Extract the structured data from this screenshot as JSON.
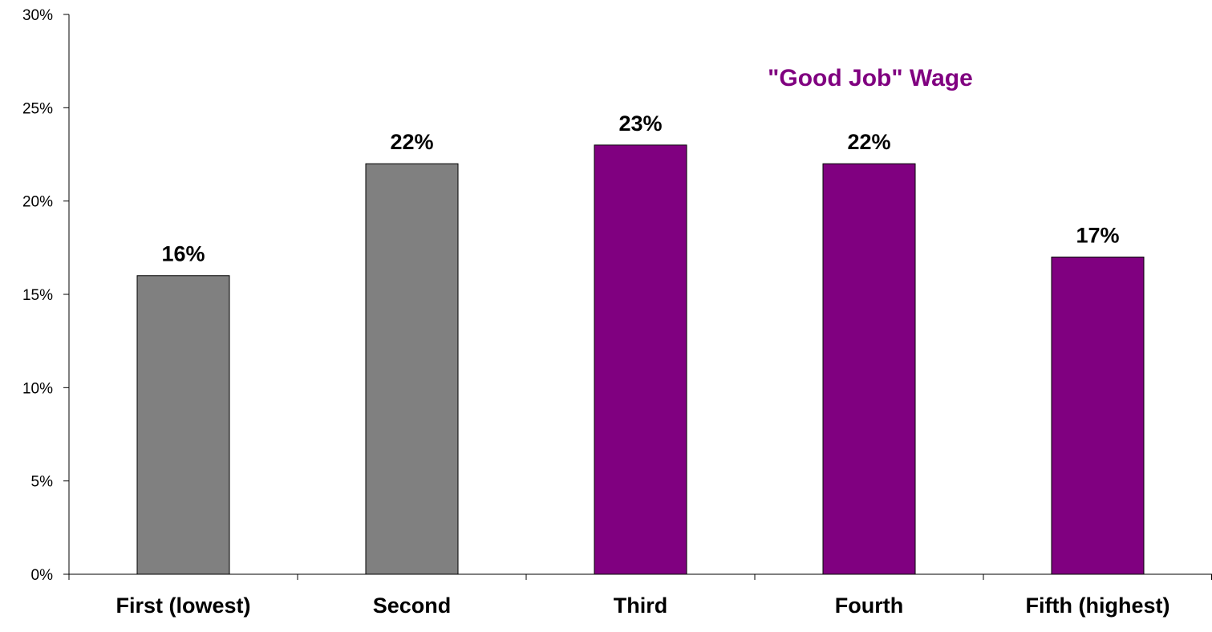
{
  "chart_data": {
    "type": "bar",
    "categories": [
      "First (lowest)",
      "Second",
      "Third",
      "Fourth",
      "Fifth (highest)"
    ],
    "values": [
      16,
      22,
      23,
      22,
      17
    ],
    "value_labels": [
      "16%",
      "22%",
      "23%",
      "22%",
      "17%"
    ],
    "bar_colors": [
      "#808080",
      "#808080",
      "#800080",
      "#800080",
      "#800080"
    ],
    "ylim": [
      0,
      30
    ],
    "yticks": [
      0,
      5,
      10,
      15,
      20,
      25,
      30
    ],
    "ytick_labels": [
      "0%",
      "5%",
      "10%",
      "15%",
      "20%",
      "25%",
      "30%"
    ],
    "annotation": "\"Good Job\" Wage",
    "annotation_color": "#800080",
    "grid": false,
    "title": "",
    "xlabel": "",
    "ylabel": ""
  }
}
